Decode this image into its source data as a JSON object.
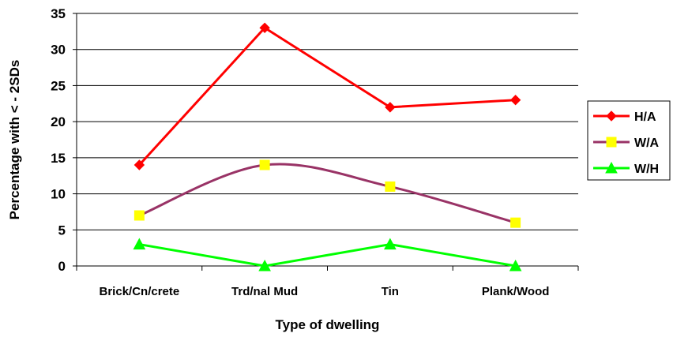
{
  "chart_data": {
    "type": "line",
    "categories": [
      "Brick/Cn/crete",
      "Trd/nal Mud",
      "Tin",
      "Plank/Wood"
    ],
    "series": [
      {
        "name": "H/A",
        "values": [
          14,
          33,
          22,
          23
        ],
        "color": "#ff0000",
        "marker": "diamond",
        "marker_color": "#ff0000"
      },
      {
        "name": "W/A",
        "values": [
          7,
          14,
          11,
          6
        ],
        "color": "#993366",
        "marker": "square",
        "marker_color": "#ffff00",
        "smooth": true
      },
      {
        "name": "W/H",
        "values": [
          3,
          0,
          3,
          0
        ],
        "color": "#00ff00",
        "marker": "triangle",
        "marker_color": "#00ff00"
      }
    ],
    "xlabel": "Type of dwelling",
    "ylabel": "Percentage with < - 2SDs",
    "ylim": [
      0,
      35
    ],
    "yticks": [
      0,
      5,
      10,
      15,
      20,
      25,
      30,
      35
    ],
    "grid": true,
    "legend": "right"
  }
}
